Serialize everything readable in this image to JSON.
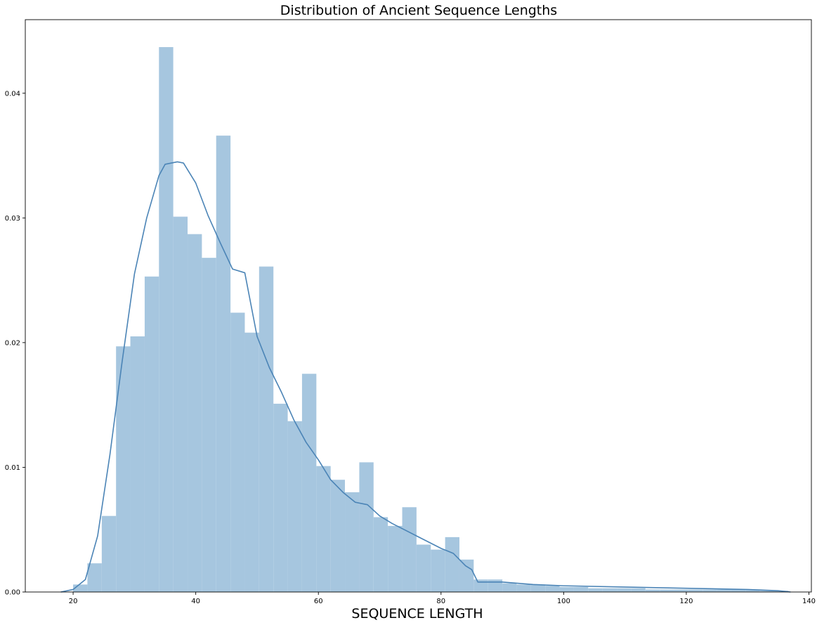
{
  "chart_data": {
    "type": "bar",
    "title": "Distribution of Ancient Sequence Lengths",
    "xlabel": "SEQUENCE LENGTH",
    "ylabel": "",
    "xlim": [
      12.2,
      140.4
    ],
    "ylim": [
      0,
      0.0459
    ],
    "xticks": [
      20,
      40,
      60,
      80,
      100,
      120,
      140
    ],
    "yticks": [
      0.0,
      0.01,
      0.02,
      0.03,
      0.04
    ],
    "ytick_labels": [
      "0.00",
      "0.01",
      "0.02",
      "0.03",
      "0.04"
    ],
    "grid": false,
    "legend": "none",
    "bar_color": "#a6c6df",
    "line_color": "#4b84b6",
    "histogram": {
      "bin_edges": [
        20,
        22.33,
        24.67,
        27,
        29.33,
        31.67,
        34,
        36.33,
        38.67,
        41,
        43.33,
        45.67,
        48,
        50.33,
        52.67,
        55,
        57.33,
        59.67,
        62,
        64.33,
        66.67,
        69,
        71.33,
        73.67,
        76,
        78.33,
        80.67,
        83,
        85.33,
        87.67,
        90,
        92.33,
        94.67,
        97,
        99.33,
        101.67,
        104,
        106.33,
        108.67,
        111,
        113.33,
        115.67,
        118,
        120.33,
        122.67,
        125,
        127.33,
        129.67,
        132,
        134.33,
        136.67
      ],
      "density": [
        0.0006,
        0.0023,
        0.0061,
        0.0197,
        0.0205,
        0.0253,
        0.0437,
        0.0301,
        0.0287,
        0.0268,
        0.0366,
        0.0224,
        0.0208,
        0.0261,
        0.0151,
        0.0137,
        0.0175,
        0.0101,
        0.009,
        0.008,
        0.0104,
        0.006,
        0.0053,
        0.0068,
        0.0038,
        0.0034,
        0.0044,
        0.0026,
        0.001,
        0.001,
        0.0007,
        0.0006,
        0.0006,
        0.0005,
        0.0004,
        0.0004,
        0.0003,
        0.0003,
        0.0003,
        0.0003,
        0.0002,
        0.0002,
        0.0002,
        0.0002,
        0.0002,
        0.0002,
        0.0002,
        0.0002,
        0.0001,
        0.0001
      ]
    },
    "kde": {
      "x": [
        18,
        20,
        22,
        24,
        26,
        28,
        30,
        32,
        34,
        35,
        37,
        38,
        40,
        42,
        44,
        46,
        48,
        50,
        52,
        54,
        56,
        58,
        60,
        62,
        64,
        66,
        68,
        70,
        72,
        74,
        76,
        78,
        80,
        82,
        84,
        85,
        86,
        88,
        90,
        95,
        100,
        110,
        120,
        130,
        135,
        137
      ],
      "y": [
        0.0,
        0.0002,
        0.001,
        0.0045,
        0.011,
        0.0185,
        0.0255,
        0.03,
        0.0334,
        0.0343,
        0.0345,
        0.0344,
        0.0328,
        0.0302,
        0.028,
        0.0259,
        0.0256,
        0.0205,
        0.018,
        0.016,
        0.0138,
        0.012,
        0.0106,
        0.009,
        0.008,
        0.0072,
        0.007,
        0.0061,
        0.0055,
        0.005,
        0.0045,
        0.004,
        0.0035,
        0.0031,
        0.0021,
        0.0018,
        0.0008,
        0.0008,
        0.0008,
        0.0006,
        0.0005,
        0.0004,
        0.0003,
        0.0002,
        0.0001,
        0.0
      ]
    }
  }
}
